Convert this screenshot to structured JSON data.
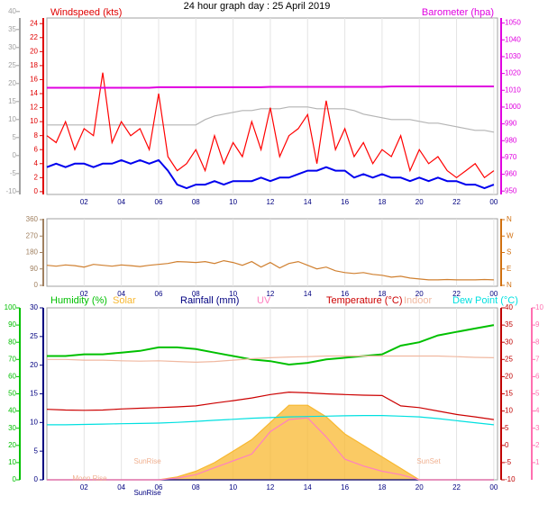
{
  "chart_data": [
    {
      "type": "line",
      "title": "24 hour graph day : 25 April 2019",
      "x": [
        0,
        0.5,
        1,
        1.5,
        2,
        2.5,
        3,
        3.5,
        4,
        4.5,
        5,
        5.5,
        6,
        6.5,
        7,
        7.5,
        8,
        8.5,
        9,
        9.5,
        10,
        10.5,
        11,
        11.5,
        12,
        12.5,
        13,
        13.5,
        14,
        14.5,
        15,
        15.5,
        16,
        16.5,
        17,
        17.5,
        18,
        18.5,
        19,
        19.5,
        20,
        20.5,
        21,
        21.5,
        22,
        22.5,
        23,
        23.5,
        24
      ],
      "xlim": [
        0,
        24.2
      ],
      "xticks": [
        {
          "value": 2,
          "label": "02"
        },
        {
          "value": 4,
          "label": "04"
        },
        {
          "value": 6,
          "label": "06"
        },
        {
          "value": 8,
          "label": "08"
        },
        10,
        12,
        14,
        16,
        18,
        20,
        22,
        {
          "value": 24,
          "label": "00"
        }
      ],
      "axes": [
        {
          "color": "#a0a0a0",
          "lim": [
            -10.8,
            38.2
          ],
          "ticks": [
            -10,
            -5,
            0,
            5,
            10,
            15,
            20,
            25,
            30,
            35,
            40
          ],
          "side": "left"
        },
        {
          "label": "Windspeed (kts)",
          "color": "#e00000",
          "lim": [
            -0.4,
            24.8
          ],
          "ticks": [
            0,
            2,
            4,
            6,
            8,
            10,
            12,
            14,
            16,
            18,
            20,
            22,
            24
          ],
          "side": "left"
        },
        {
          "label": "Barometer (hpa)",
          "color": "#e000e0",
          "lim": [
            948,
            1053
          ],
          "ticks": [
            950,
            960,
            970,
            980,
            990,
            1000,
            1010,
            1020,
            1030,
            1040,
            1050
          ],
          "side": "right"
        }
      ],
      "series": [
        {
          "color": "#b4b4b4",
          "axis": 0,
          "values": [
            8.5,
            8.5,
            8.5,
            8.5,
            8.5,
            8.5,
            8.5,
            8.5,
            8.5,
            8.5,
            8.5,
            8.5,
            8.5,
            8.5,
            8.5,
            8.5,
            8.5,
            10,
            11,
            11.5,
            12,
            12.5,
            12.5,
            13,
            13,
            13,
            13.5,
            13.5,
            13.5,
            13,
            13,
            13,
            13,
            12.5,
            11.5,
            11,
            10.5,
            10,
            10,
            10,
            9.5,
            9,
            9,
            8.5,
            8,
            7.5,
            7,
            7,
            6.5
          ]
        },
        {
          "color": "#ff0000",
          "axis": 1,
          "values": [
            8,
            7,
            10,
            6,
            9,
            8,
            17,
            7,
            10,
            8,
            9,
            6,
            14,
            5,
            3,
            4,
            6,
            3,
            8,
            4,
            7,
            5,
            10,
            6,
            12,
            5,
            8,
            9,
            11,
            4,
            13,
            6,
            9,
            5,
            7,
            4,
            6,
            5,
            8,
            3,
            6,
            4,
            5,
            3,
            2,
            3,
            4,
            2,
            3
          ]
        },
        {
          "color": "#0000ee",
          "axis": 1,
          "values": [
            3.5,
            4,
            3.5,
            4,
            4,
            3.5,
            4,
            4,
            4.5,
            4,
            4.5,
            4,
            4.5,
            3,
            1,
            0.5,
            1,
            1,
            1.5,
            1,
            1.5,
            1.5,
            1.5,
            2,
            1.5,
            2,
            2,
            2.5,
            3,
            3,
            3.5,
            3,
            3,
            2,
            2.5,
            2,
            2.5,
            2,
            2,
            1.5,
            2,
            1.5,
            2,
            1.5,
            1.5,
            1,
            1,
            0.5,
            1
          ]
        },
        {
          "color": "#e000e0",
          "axis": 2,
          "values": [
            1011.5,
            1011.5,
            1011.5,
            1011.5,
            1011.5,
            1011.5,
            1011.5,
            1011.5,
            1011.5,
            1011.5,
            1011.5,
            1011.5,
            1011.8,
            1011.8,
            1011.8,
            1011.8,
            1011.8,
            1011.8,
            1011.8,
            1011.8,
            1011.8,
            1011.8,
            1011.8,
            1011.8,
            1012,
            1012,
            1012,
            1012,
            1012,
            1012,
            1012,
            1012,
            1012,
            1012,
            1012,
            1012,
            1012,
            1012.3,
            1012.3,
            1012.3,
            1012.3,
            1012.3,
            1012.3,
            1012.3,
            1012.3,
            1012.3,
            1012.3,
            1012.3,
            1012.3
          ]
        }
      ]
    },
    {
      "type": "line",
      "x": [
        0,
        0.5,
        1,
        1.5,
        2,
        2.5,
        3,
        3.5,
        4,
        4.5,
        5,
        5.5,
        6,
        6.5,
        7,
        7.5,
        8,
        8.5,
        9,
        9.5,
        10,
        10.5,
        11,
        11.5,
        12,
        12.5,
        13,
        13.5,
        14,
        14.5,
        15,
        15.5,
        16,
        16.5,
        17,
        17.5,
        18,
        18.5,
        19,
        19.5,
        20,
        20.5,
        21,
        21.5,
        22,
        22.5,
        23,
        23.5,
        24
      ],
      "xlim": [
        0,
        24.2
      ],
      "xticks": [
        {
          "value": 2,
          "label": "02"
        },
        {
          "value": 4,
          "label": "04"
        },
        {
          "value": 6,
          "label": "06"
        },
        {
          "value": 8,
          "label": "08"
        },
        10,
        12,
        14,
        16,
        18,
        20,
        22,
        {
          "value": 24,
          "label": "00"
        }
      ],
      "axes": [
        {
          "color": "#a08060",
          "lim": [
            -5,
            365
          ],
          "ticks": [
            0,
            90,
            180,
            270,
            360
          ],
          "side": "left"
        },
        {
          "color": "#d07010",
          "lim": [
            -5,
            365
          ],
          "ticks": [
            {
              "value": 0,
              "label": "N"
            },
            {
              "value": 90,
              "label": "E"
            },
            {
              "value": 180,
              "label": "S"
            },
            {
              "value": 270,
              "label": "W"
            },
            {
              "value": 360,
              "label": "N"
            }
          ],
          "side": "right"
        }
      ],
      "series": [
        {
          "color": "#d08030",
          "axis": 0,
          "values": [
            110,
            105,
            112,
            108,
            100,
            115,
            110,
            105,
            112,
            108,
            103,
            110,
            115,
            120,
            130,
            128,
            125,
            130,
            120,
            135,
            125,
            110,
            130,
            100,
            125,
            95,
            120,
            130,
            110,
            90,
            100,
            80,
            70,
            65,
            70,
            60,
            55,
            45,
            50,
            40,
            35,
            30,
            30,
            32,
            30,
            30,
            30,
            32,
            30
          ]
        }
      ]
    },
    {
      "type": "line",
      "x": [
        0,
        1,
        2,
        3,
        4,
        5,
        6,
        7,
        8,
        9,
        10,
        11,
        12,
        13,
        14,
        15,
        16,
        17,
        18,
        19,
        20,
        21,
        22,
        23,
        24
      ],
      "xlim": [
        0,
        24.2
      ],
      "xticks": [
        {
          "value": 2,
          "label": "02"
        },
        {
          "value": 4,
          "label": "04"
        },
        {
          "value": 6,
          "label": "06"
        },
        {
          "value": 8,
          "label": "08"
        },
        10,
        12,
        14,
        16,
        18,
        20,
        22,
        {
          "value": 24,
          "label": "00"
        }
      ],
      "axes": [
        {
          "color": "#00c000",
          "lim": [
            0,
            100
          ],
          "ticks": [
            0,
            10,
            20,
            30,
            40,
            50,
            60,
            70,
            80,
            90,
            100
          ],
          "side": "left"
        },
        {
          "color": "#000080",
          "lim": [
            0,
            30
          ],
          "ticks": [
            0,
            5,
            10,
            15,
            20,
            25,
            30
          ],
          "side": "left"
        },
        {
          "color": "#c00000",
          "lim": [
            -10,
            40
          ],
          "ticks": [
            -10,
            -5,
            0,
            5,
            10,
            15,
            20,
            25,
            30,
            35,
            40
          ],
          "side": "right"
        },
        {
          "color": "#ff70b0",
          "lim": [
            0,
            10
          ],
          "ticks": [
            1,
            2,
            3,
            4,
            5,
            6,
            7,
            8,
            9,
            10
          ],
          "side": "right"
        }
      ],
      "series": [
        {
          "name": "Humidity (%)",
          "color": "#00c000",
          "axis": 0,
          "values": [
            72,
            72,
            73,
            73,
            74,
            75,
            77,
            77,
            76,
            74,
            72,
            70,
            69,
            67,
            68,
            70,
            71,
            72,
            73,
            78,
            80,
            84,
            86,
            88,
            90
          ]
        },
        {
          "name": "Solar",
          "color": "#f8b830",
          "axis": 1,
          "fill": true,
          "values": [
            0,
            0,
            0,
            0,
            0,
            0,
            0,
            0.5,
            1.5,
            3,
            5,
            7,
            10,
            13,
            13,
            11,
            8,
            6,
            4,
            2,
            0,
            0,
            0,
            0,
            0
          ]
        },
        {
          "name": "Rainfall (mm)",
          "color": "#000080",
          "axis": 1,
          "values": [
            0,
            0,
            0,
            0,
            0,
            0,
            0,
            0,
            0,
            0,
            0,
            0,
            0,
            0,
            0,
            0,
            0,
            0,
            0,
            0,
            0,
            0,
            0,
            0,
            0
          ]
        },
        {
          "name": "UV",
          "color": "#ff80c0",
          "axis": 3,
          "values": [
            0,
            0,
            0,
            0,
            0,
            0,
            0,
            0.1,
            0.3,
            0.7,
            1.1,
            1.5,
            2.8,
            3.5,
            3.6,
            2.5,
            1.2,
            0.8,
            0.5,
            0.3,
            0,
            0,
            0,
            0,
            0
          ]
        },
        {
          "name": "Temperature (°C)",
          "color": "#cc0000",
          "axis": 2,
          "values": [
            10.5,
            10.3,
            10.2,
            10.3,
            10.6,
            10.8,
            11,
            11.2,
            11.5,
            12.3,
            13,
            13.8,
            14.8,
            15.5,
            15.3,
            15,
            14.8,
            14.6,
            14.5,
            11.5,
            11,
            10,
            9,
            8.3,
            7.5
          ]
        },
        {
          "name": "Indoor",
          "color": "#f0b8a0",
          "axis": 2,
          "values": [
            25,
            25,
            24.8,
            24.8,
            24.6,
            24.5,
            24.6,
            24.4,
            24.2,
            24.4,
            24.8,
            25.2,
            25.5,
            25.7,
            25.8,
            26,
            26,
            26,
            26,
            26,
            26,
            26,
            25.8,
            25.6,
            25.5
          ]
        },
        {
          "name": "Dew Point (°C)",
          "color": "#00e0e0",
          "axis": 2,
          "values": [
            6,
            6,
            6.1,
            6.2,
            6.3,
            6.4,
            6.5,
            6.7,
            7,
            7.3,
            7.6,
            7.9,
            8.1,
            8.3,
            8.4,
            8.5,
            8.6,
            8.7,
            8.7,
            8.5,
            8.3,
            7.8,
            7.2,
            6.6,
            6
          ]
        }
      ],
      "annotations": [
        {
          "text": "SunRise",
          "x": 5.4
        },
        {
          "text": "SunSet",
          "x": 20.5
        },
        {
          "text": "Moon Rise",
          "x": 2.3
        },
        {
          "text": "SunRise",
          "x": 5.4
        }
      ]
    }
  ]
}
